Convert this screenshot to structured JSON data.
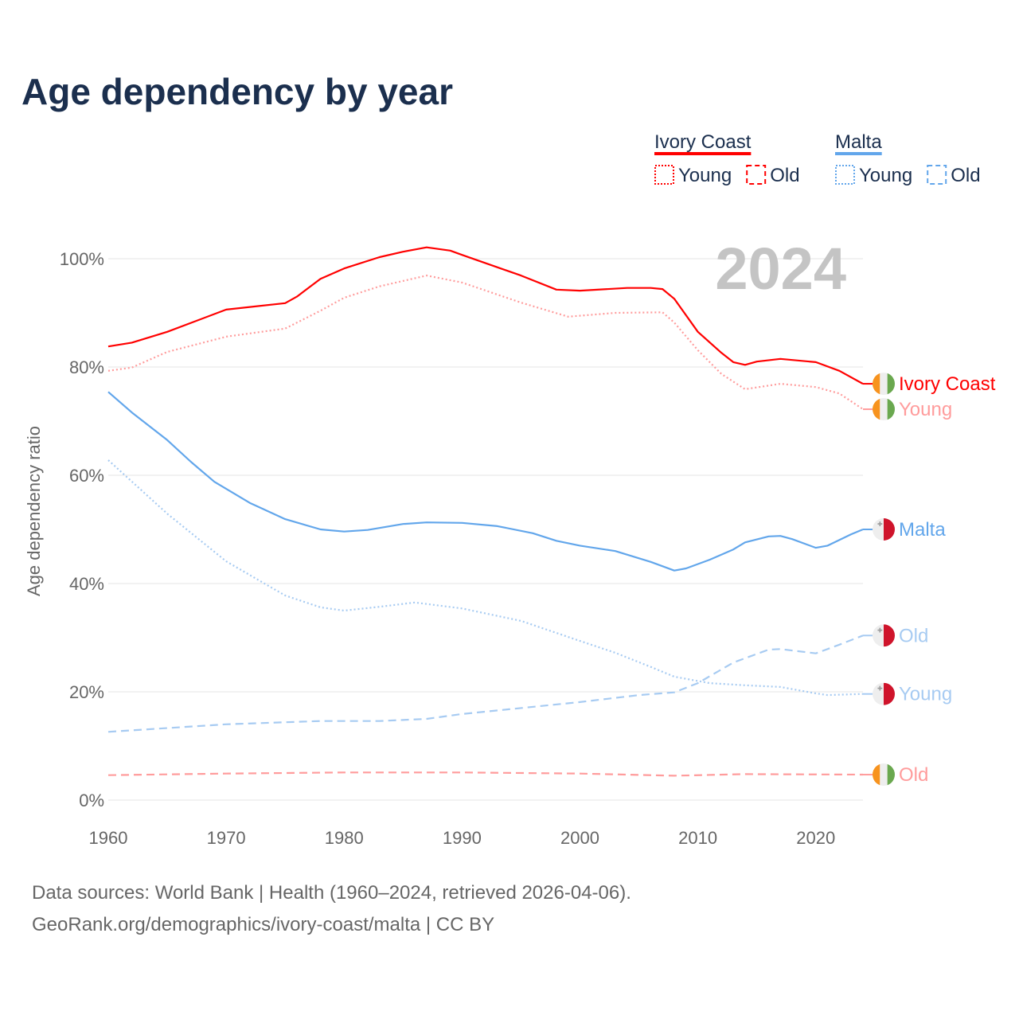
{
  "title": "Age dependency by year",
  "source_line1": "Data sources: World Bank | Health (1960–2024, retrieved 2026-04-06).",
  "source_line2": "GeoRank.org/demographics/ivory-coast/malta | CC BY",
  "year_watermark": "2024",
  "legend": {
    "groups": [
      {
        "name": "Ivory Coast",
        "color": "#ff0000",
        "items": [
          "Young",
          "Old"
        ]
      },
      {
        "name": "Malta",
        "color": "#62a6eb",
        "items": [
          "Young",
          "Old"
        ]
      }
    ]
  },
  "chart_data": {
    "type": "line",
    "title": "Age dependency by year",
    "xlabel": "",
    "ylabel": "Age dependency ratio",
    "xlim": [
      1960,
      2024
    ],
    "ylim": [
      0,
      100
    ],
    "x_ticks": [
      "1960",
      "1970",
      "1980",
      "1990",
      "2000",
      "2010",
      "2020"
    ],
    "y_ticks": [
      "0%",
      "20%",
      "40%",
      "60%",
      "80%",
      "100%"
    ],
    "grid": true,
    "series": [
      {
        "name": "Ivory Coast",
        "end_label": "Ivory Coast",
        "color": "#ff0000",
        "style": "solid",
        "flag": "ivory-coast",
        "x": [
          1960,
          1962,
          1965,
          1970,
          1975,
          1976,
          1978,
          1980,
          1983,
          1985,
          1987,
          1989,
          1990,
          1995,
          1998,
          2000,
          2004,
          2006,
          2007,
          2008,
          2010,
          2012,
          2013,
          2014,
          2015,
          2017,
          2020,
          2022,
          2024
        ],
        "y": [
          83.8,
          84.5,
          86.5,
          90.6,
          91.8,
          93,
          96.3,
          98.2,
          100.3,
          101.3,
          102.1,
          101.5,
          100.7,
          96.9,
          94.3,
          94.1,
          94.6,
          94.6,
          94.4,
          92.6,
          86.5,
          82.6,
          80.9,
          80.4,
          81,
          81.5,
          80.9,
          79.3,
          76.9
        ]
      },
      {
        "name": "Ivory Coast Young",
        "end_label": "Young",
        "color": "#ff9c9c",
        "style": "dotted",
        "flag": "ivory-coast",
        "x": [
          1960,
          1962,
          1965,
          1970,
          1975,
          1978,
          1980,
          1983,
          1987,
          1990,
          1995,
          1999,
          2003,
          2007,
          2008,
          2010,
          2012,
          2014,
          2017,
          2020,
          2022,
          2024
        ],
        "y": [
          79.3,
          79.9,
          82.8,
          85.6,
          87.1,
          90.4,
          92.8,
          94.9,
          96.9,
          95.6,
          91.9,
          89.3,
          90,
          90.1,
          88.2,
          83.1,
          78.7,
          75.9,
          76.9,
          76.3,
          75.1,
          72.2
        ]
      },
      {
        "name": "Ivory Coast Old",
        "end_label": "Old",
        "color": "#ff9c9c",
        "style": "dashed",
        "flag": "ivory-coast",
        "x": [
          1960,
          1970,
          1980,
          1990,
          2000,
          2008,
          2014,
          2024
        ],
        "y": [
          4.6,
          4.9,
          5.1,
          5.1,
          4.9,
          4.5,
          4.8,
          4.7
        ]
      },
      {
        "name": "Malta",
        "end_label": "Malta",
        "color": "#62a6eb",
        "style": "solid",
        "flag": "malta",
        "x": [
          1960,
          1962,
          1965,
          1967,
          1969,
          1972,
          1975,
          1978,
          1980,
          1982,
          1985,
          1987,
          1990,
          1993,
          1996,
          1998,
          2000,
          2003,
          2006,
          2008,
          2009,
          2011,
          2013,
          2014,
          2016,
          2017,
          2018,
          2020,
          2021,
          2023,
          2024
        ],
        "y": [
          75.4,
          71.6,
          66.5,
          62.5,
          58.8,
          54.9,
          51.9,
          50,
          49.6,
          49.9,
          51,
          51.3,
          51.2,
          50.6,
          49.3,
          47.9,
          47,
          46,
          44,
          42.4,
          42.8,
          44.4,
          46.3,
          47.6,
          48.7,
          48.8,
          48.2,
          46.6,
          47,
          49.1,
          50
        ]
      },
      {
        "name": "Malta Old",
        "end_label": "Old",
        "color": "#a7cbf2",
        "style": "dashed",
        "flag": "malta",
        "x": [
          1960,
          1970,
          1978,
          1983,
          1987,
          1990,
          2000,
          2005,
          2008,
          2010,
          2013,
          2016,
          2017,
          2020,
          2022,
          2024
        ],
        "y": [
          12.6,
          14,
          14.6,
          14.6,
          15,
          15.9,
          18.1,
          19.4,
          19.9,
          21.6,
          25.4,
          27.8,
          27.9,
          27.1,
          28.7,
          30.4
        ]
      },
      {
        "name": "Malta Young",
        "end_label": "Young",
        "color": "#a7cbf2",
        "style": "dotted",
        "flag": "malta",
        "x": [
          1960,
          1965,
          1970,
          1975,
          1978,
          1980,
          1983,
          1986,
          1990,
          1995,
          2000,
          2003,
          2006,
          2008,
          2011,
          2014,
          2017,
          2020,
          2021,
          2024
        ],
        "y": [
          62.8,
          52.9,
          44.1,
          37.8,
          35.6,
          35,
          35.7,
          36.5,
          35.4,
          33.1,
          29.4,
          27.2,
          24.6,
          22.8,
          21.6,
          21.2,
          20.9,
          19.7,
          19.4,
          19.6
        ]
      }
    ]
  }
}
